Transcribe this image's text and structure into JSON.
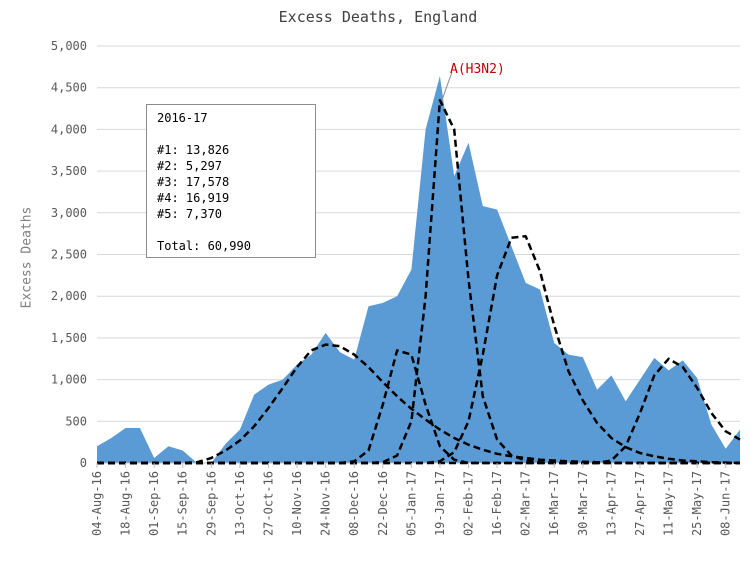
{
  "chart_data": {
    "type": "area",
    "title": "Excess Deaths, England",
    "xlabel": "",
    "ylabel": "Excess Deaths",
    "ylim": [
      0,
      5000
    ],
    "yticks": [
      "0",
      "500",
      "1,000",
      "1,500",
      "2,000",
      "2,500",
      "3,000",
      "3,500",
      "4,000",
      "4,500",
      "5,000"
    ],
    "x_tick_labels": [
      "04-Aug-16",
      "18-Aug-16",
      "01-Sep-16",
      "15-Sep-16",
      "29-Sep-16",
      "13-Oct-16",
      "27-Oct-16",
      "10-Nov-16",
      "24-Nov-16",
      "08-Dec-16",
      "22-Dec-16",
      "05-Jan-17",
      "19-Jan-17",
      "02-Feb-17",
      "16-Feb-17",
      "02-Mar-17",
      "16-Mar-17",
      "30-Mar-17",
      "13-Apr-17",
      "27-Apr-17",
      "11-May-17",
      "25-May-17",
      "08-Jun-17"
    ],
    "area_color": "#5b9bd5",
    "curve_color": "#000000",
    "series": [
      {
        "type": "area",
        "values": [
          200,
          300,
          420,
          420,
          60,
          200,
          150,
          -20,
          -60,
          230,
          400,
          820,
          940,
          1000,
          1180,
          1300,
          1560,
          1330,
          1240,
          1880,
          1920,
          2000,
          2320,
          4000,
          4640,
          3440,
          3840,
          3080,
          3040,
          2600,
          2160,
          2080,
          1440,
          1300,
          1270,
          880,
          1050,
          740,
          1000,
          1260,
          1110,
          1230,
          1020,
          460,
          170,
          400
        ]
      },
      {
        "type": "curve",
        "values": [
          0,
          0,
          0,
          0,
          0,
          0,
          0,
          10,
          60,
          150,
          270,
          440,
          660,
          900,
          1150,
          1350,
          1420,
          1400,
          1300,
          1150,
          970,
          800,
          650,
          520,
          400,
          300,
          220,
          160,
          110,
          80,
          60,
          40,
          30,
          20,
          15,
          10,
          5,
          0,
          0,
          0,
          0,
          0,
          0,
          0,
          0,
          0
        ]
      },
      {
        "type": "curve",
        "values": [
          0,
          0,
          0,
          0,
          0,
          0,
          0,
          0,
          0,
          0,
          0,
          0,
          0,
          0,
          0,
          0,
          0,
          0,
          20,
          150,
          700,
          1350,
          1300,
          700,
          200,
          40,
          0,
          0,
          0,
          0,
          0,
          0,
          0,
          0,
          0,
          0,
          0,
          0,
          0,
          0,
          0,
          0,
          0,
          0,
          0,
          0
        ]
      },
      {
        "type": "curve",
        "values": [
          0,
          0,
          0,
          0,
          0,
          0,
          0,
          0,
          0,
          0,
          0,
          0,
          0,
          0,
          0,
          0,
          0,
          0,
          0,
          0,
          10,
          90,
          500,
          2000,
          4350,
          4000,
          2200,
          800,
          280,
          90,
          30,
          10,
          0,
          0,
          0,
          0,
          0,
          0,
          0,
          0,
          0,
          0,
          0,
          0,
          0,
          0
        ]
      },
      {
        "type": "curve",
        "values": [
          0,
          0,
          0,
          0,
          0,
          0,
          0,
          0,
          0,
          0,
          0,
          0,
          0,
          0,
          0,
          0,
          0,
          0,
          0,
          0,
          0,
          0,
          0,
          0,
          20,
          130,
          500,
          1300,
          2250,
          2700,
          2720,
          2300,
          1650,
          1100,
          750,
          480,
          300,
          190,
          120,
          80,
          50,
          30,
          20,
          10,
          5,
          0
        ]
      },
      {
        "type": "curve",
        "values": [
          0,
          0,
          0,
          0,
          0,
          0,
          0,
          0,
          0,
          0,
          0,
          0,
          0,
          0,
          0,
          0,
          0,
          0,
          0,
          0,
          0,
          0,
          0,
          0,
          0,
          0,
          0,
          0,
          0,
          0,
          0,
          0,
          0,
          0,
          0,
          0,
          30,
          200,
          600,
          1050,
          1250,
          1150,
          900,
          600,
          380,
          280
        ]
      }
    ],
    "annotations": [
      {
        "text": "A(H3N2)"
      }
    ],
    "infobox": {
      "season": "2016-17",
      "lines": [
        "#1: 13,826",
        "#2: 5,297",
        "#3: 17,578",
        "#4: 16,919",
        "#5: 7,370"
      ],
      "total": "Total: 60,990"
    },
    "grid": true
  }
}
